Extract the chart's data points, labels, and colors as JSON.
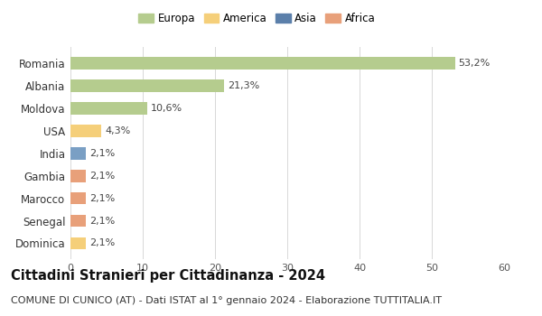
{
  "countries": [
    "Romania",
    "Albania",
    "Moldova",
    "USA",
    "India",
    "Gambia",
    "Marocco",
    "Senegal",
    "Dominica"
  ],
  "values": [
    53.2,
    21.3,
    10.6,
    4.3,
    2.1,
    2.1,
    2.1,
    2.1,
    2.1
  ],
  "labels": [
    "53,2%",
    "21,3%",
    "10,6%",
    "4,3%",
    "2,1%",
    "2,1%",
    "2,1%",
    "2,1%",
    "2,1%"
  ],
  "colors": [
    "#b5cc8e",
    "#b5cc8e",
    "#b5cc8e",
    "#f5cf7a",
    "#7a9fc4",
    "#e8a07a",
    "#e8a07a",
    "#e8a07a",
    "#f5cf7a"
  ],
  "legend": [
    {
      "label": "Europa",
      "color": "#b5cc8e"
    },
    {
      "label": "America",
      "color": "#f5cf7a"
    },
    {
      "label": "Asia",
      "color": "#5b7faa"
    },
    {
      "label": "Africa",
      "color": "#e8a07a"
    }
  ],
  "xlim": [
    0,
    60
  ],
  "xticks": [
    0,
    10,
    20,
    30,
    40,
    50,
    60
  ],
  "title": "Cittadini Stranieri per Cittadinanza - 2024",
  "subtitle": "COMUNE DI CUNICO (AT) - Dati ISTAT al 1° gennaio 2024 - Elaborazione TUTTITALIA.IT",
  "title_fontsize": 10.5,
  "subtitle_fontsize": 8.0,
  "bg_color": "#ffffff",
  "grid_color": "#d8d8d8",
  "bar_height": 0.55
}
